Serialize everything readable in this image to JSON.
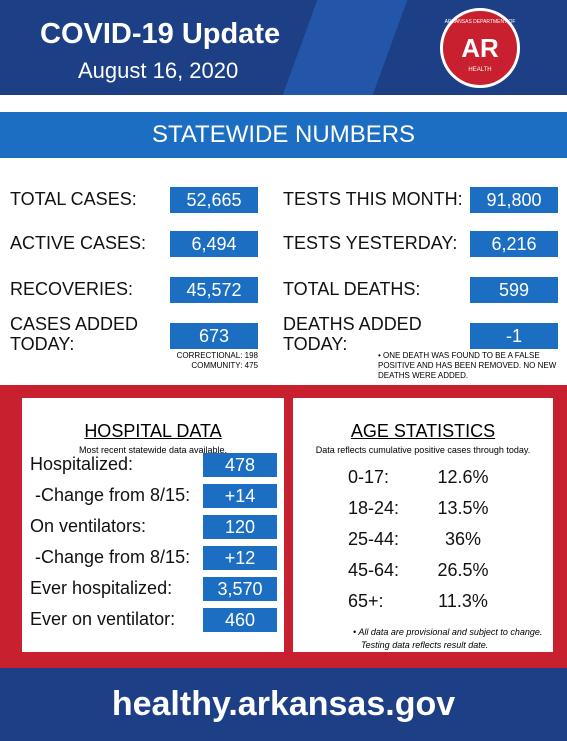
{
  "header": {
    "title": "COVID-19 Update",
    "date": "August 16, 2020",
    "logo": {
      "top": "ARKANSAS DEPARTMENT OF",
      "mark": "AR",
      "bottom": "HEALTH"
    }
  },
  "statewide": {
    "heading": "STATEWIDE NUMBERS",
    "left": [
      {
        "label": "TOTAL CASES:",
        "value": "52,665"
      },
      {
        "label": "ACTIVE CASES:",
        "value": "6,494"
      },
      {
        "label": "RECOVERIES:",
        "value": "45,572"
      },
      {
        "label": "CASES ADDED TODAY:",
        "value": "673"
      }
    ],
    "right": [
      {
        "label": "TESTS THIS MONTH:",
        "value": "91,800"
      },
      {
        "label": "TESTS YESTERDAY:",
        "value": "6,216"
      },
      {
        "label": "TOTAL DEATHS:",
        "value": "599"
      },
      {
        "label": "DEATHS ADDED TODAY:",
        "value": "-1"
      }
    ],
    "cases_note": [
      "CORRECTIONAL: 198",
      "COMMUNITY: 475"
    ],
    "deaths_note": "• ONE DEATH WAS FOUND TO BE A FALSE POSITIVE AND HAS BEEN REMOVED. NO NEW DEATHS WERE ADDED."
  },
  "hospital": {
    "title": "HOSPITAL DATA",
    "subtitle": "Most recent statewide data available.",
    "rows": [
      {
        "label": "Hospitalized:",
        "value": "478"
      },
      {
        "label": " -Change from 8/15:",
        "value": "+14"
      },
      {
        "label": "On ventilators:",
        "value": "120"
      },
      {
        "label": " -Change from 8/15:",
        "value": "+12"
      },
      {
        "label": "Ever hospitalized:",
        "value": "3,570"
      },
      {
        "label": "Ever on ventilator:",
        "value": "460"
      }
    ]
  },
  "age": {
    "title": "AGE STATISTICS",
    "subtitle": "Data reflects cumulative positive cases through today.",
    "rows": [
      {
        "group": "0-17:",
        "share": "12.6%"
      },
      {
        "group": "18-24:",
        "share": "13.5%"
      },
      {
        "group": "25-44:",
        "share": "36%"
      },
      {
        "group": "45-64:",
        "share": "26.5%"
      },
      {
        "group": "65+:",
        "share": "11.3%"
      }
    ],
    "notes": [
      "• All data are provisional and subject to change.",
      "Testing data reflects result date."
    ]
  },
  "footer": {
    "url": "healthy.arkansas.gov"
  }
}
